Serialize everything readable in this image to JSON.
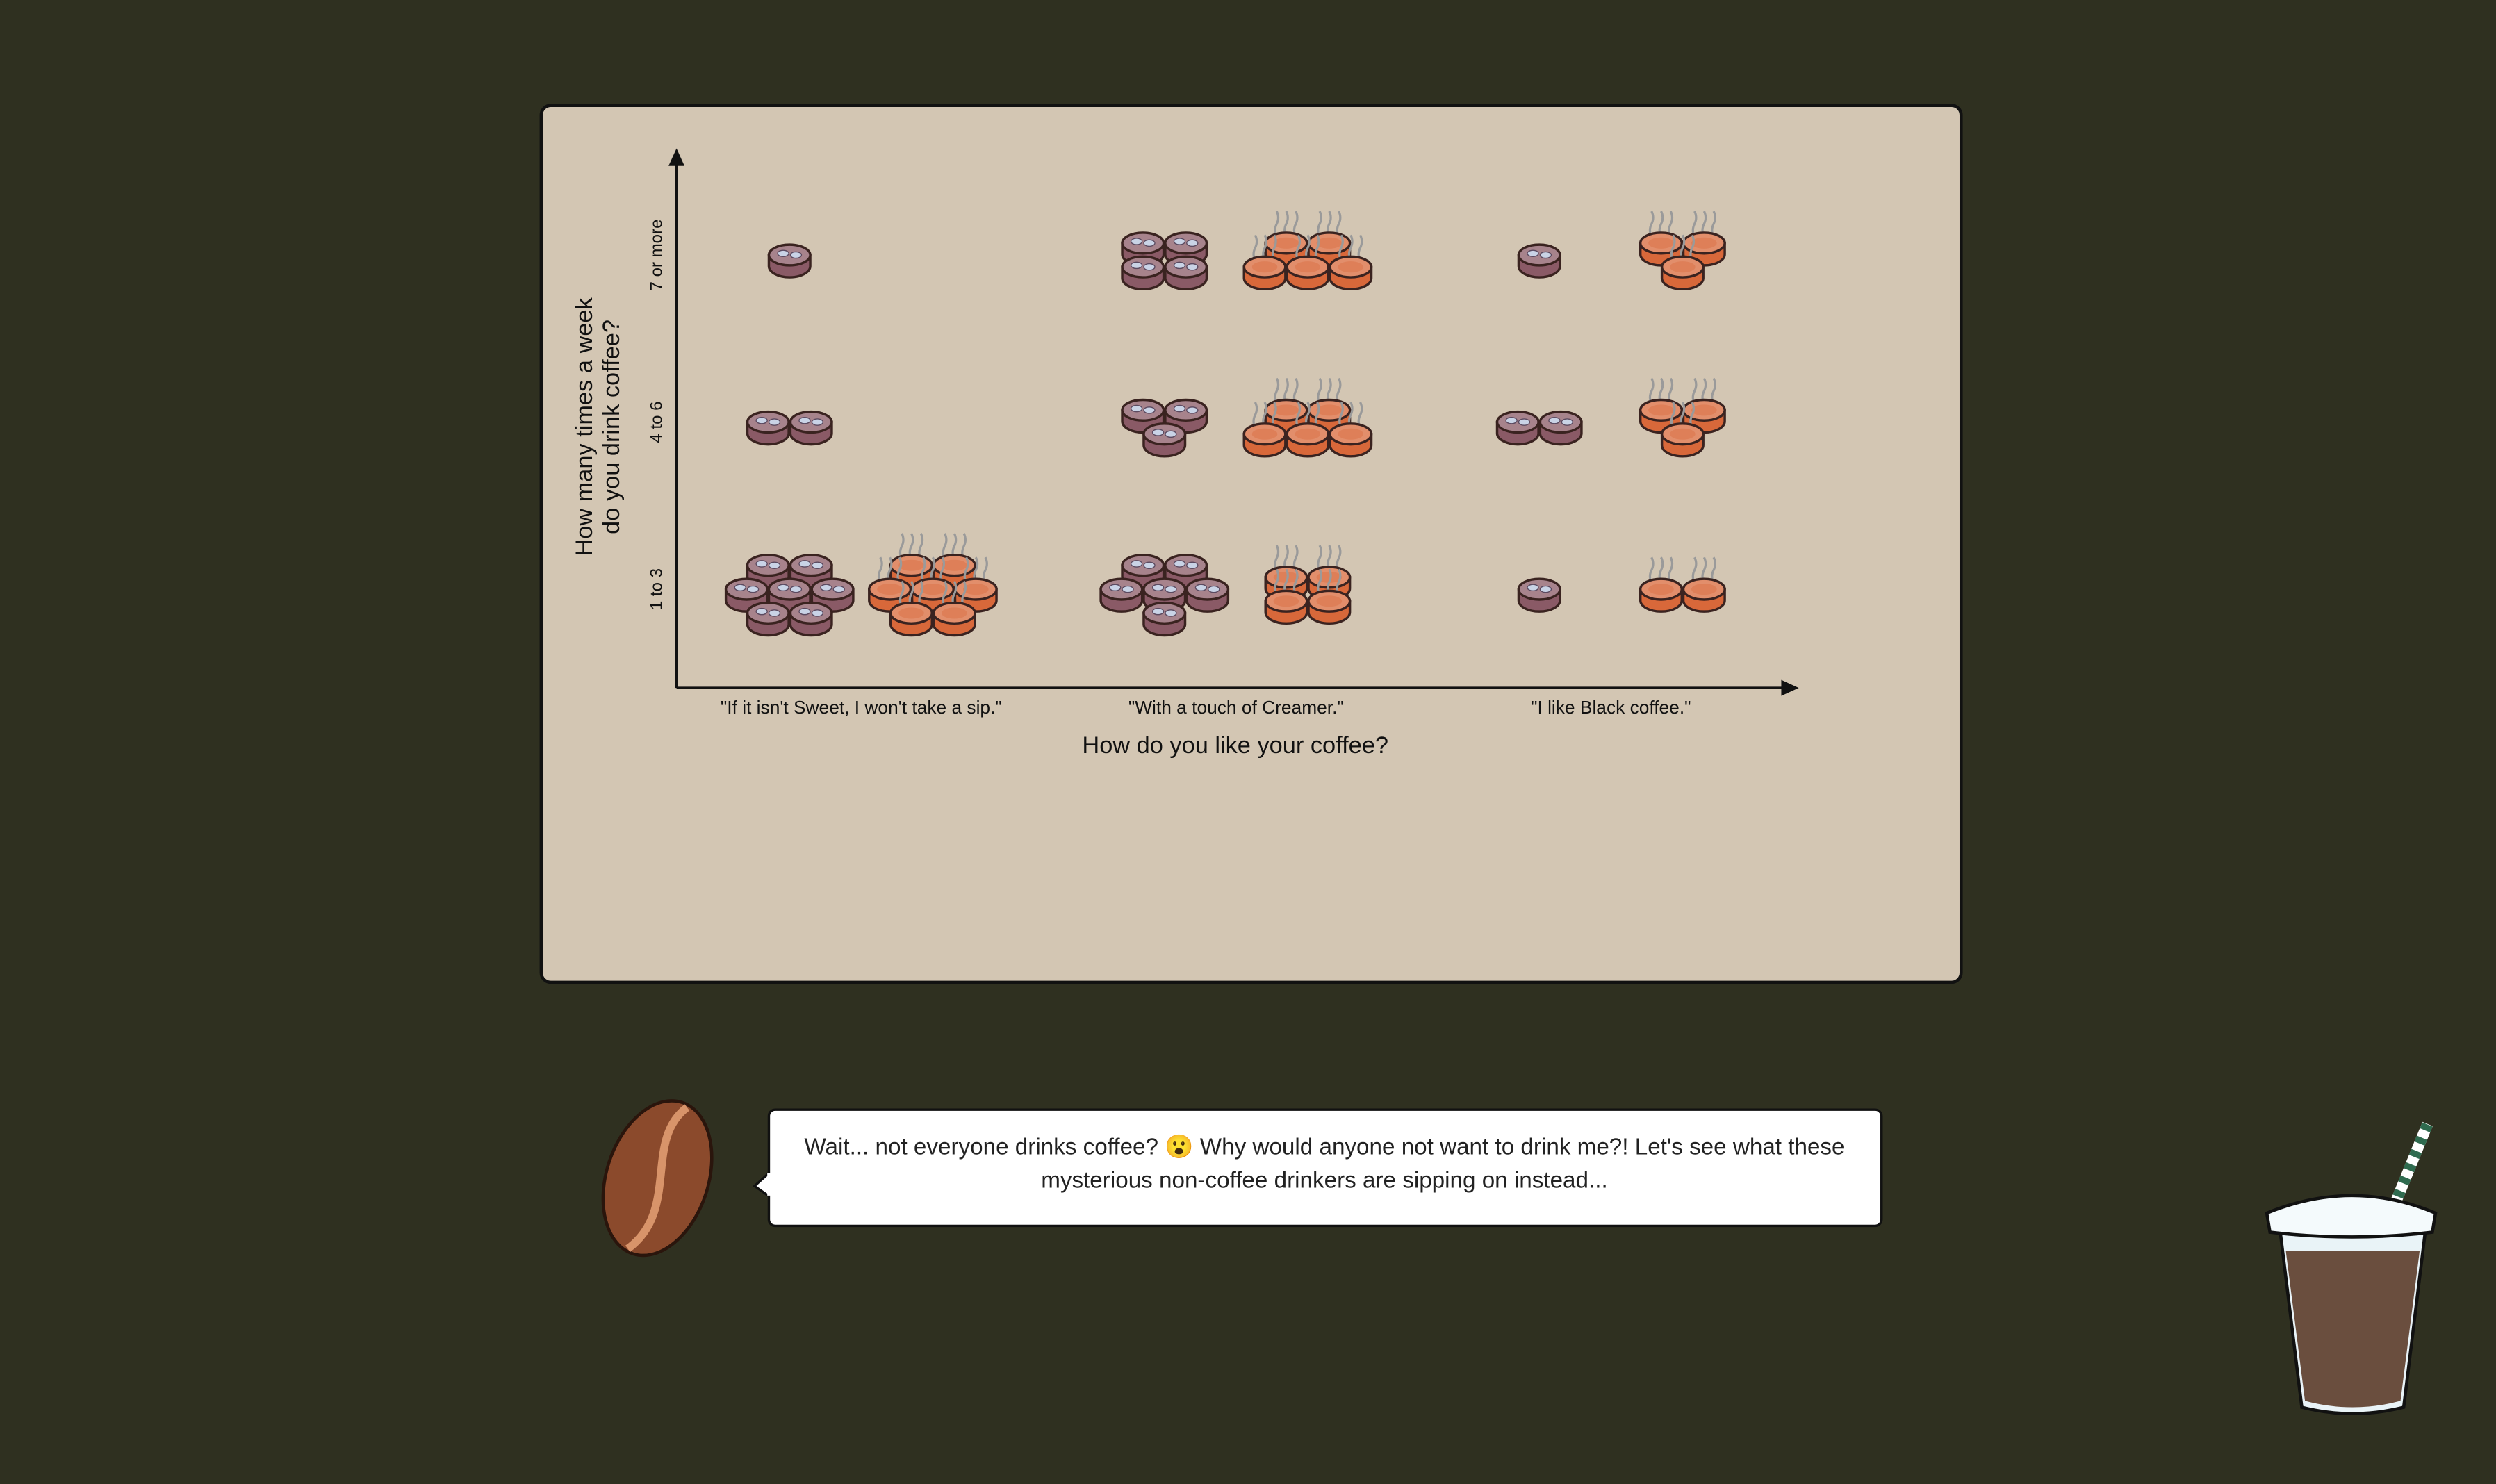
{
  "chart_data": {
    "type": "pictogram",
    "x_label": "How do you like your coffee?",
    "y_label": "How many times a week do you drink coffee?",
    "categories": [
      "\"If it isn't Sweet, I won't take a sip.\"",
      "\"With a touch of Creamer.\"",
      "\"I like Black coffee.\""
    ],
    "y_categories": [
      "1 to 3",
      "4 to 6",
      "7 or more"
    ],
    "series": [
      {
        "color": "#8a5a66",
        "values": [
          [
            7,
            6,
            1
          ],
          [
            2,
            3,
            2
          ],
          [
            1,
            4,
            1
          ]
        ]
      },
      {
        "color": "#d8683a",
        "values": [
          [
            7,
            4,
            2
          ],
          [
            0,
            5,
            3
          ],
          [
            0,
            5,
            3
          ]
        ]
      }
    ]
  },
  "caption": "Wait... not everyone drinks coffee? 😮 Why would anyone not want to drink me?! Let's see what these mysterious non-coffee drinkers are sipping on instead..."
}
